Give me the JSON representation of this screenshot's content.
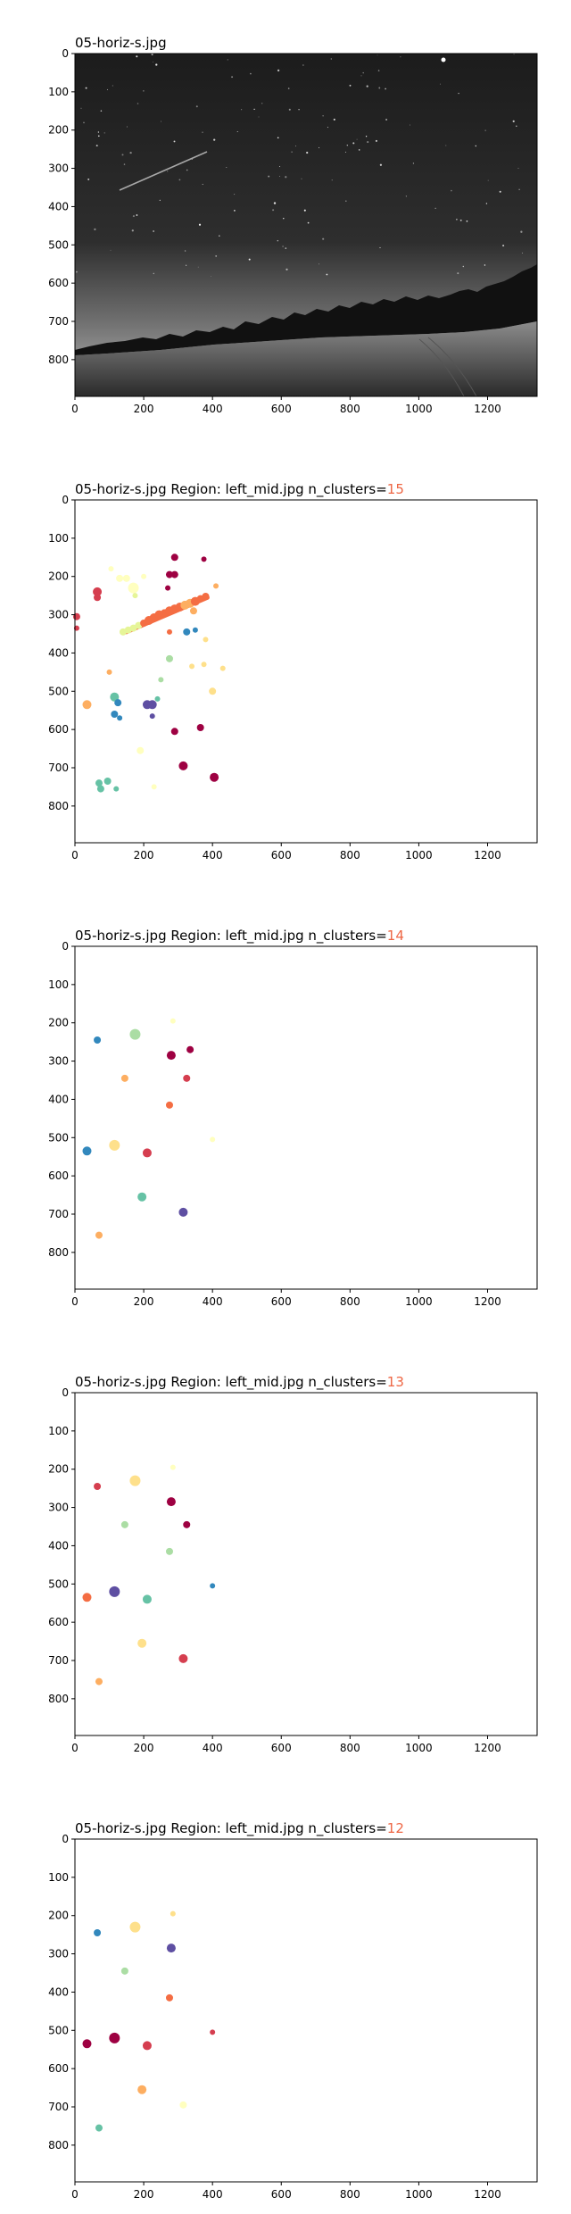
{
  "colors": {
    "spectral": [
      "#9e0142",
      "#d53e4f",
      "#f46d43",
      "#fdae61",
      "#fee08b",
      "#ffffbf",
      "#e6f598",
      "#abdda4",
      "#66c2a5",
      "#3288bd",
      "#5e4fa2"
    ],
    "accent": "#ee6644",
    "axis": "#000000"
  },
  "chart_data": [
    {
      "type": "image",
      "title": "05-horiz-s.jpg",
      "xlim": [
        0,
        1344
      ],
      "ylim": [
        896,
        0
      ],
      "xticks": [
        "0",
        "200",
        "400",
        "600",
        "800",
        "1000",
        "1200"
      ],
      "yticks": [
        "0",
        "100",
        "200",
        "300",
        "400",
        "500",
        "600",
        "700",
        "800"
      ],
      "image": "night-sky-photo"
    },
    {
      "type": "scatter",
      "title_prefix": "05-horiz-s.jpg Region: left_mid.jpg n_clusters=",
      "n_clusters": "15",
      "xlim": [
        0,
        1344
      ],
      "ylim": [
        896,
        0
      ],
      "xticks": [
        "0",
        "200",
        "400",
        "600",
        "800",
        "1000",
        "1200"
      ],
      "yticks": [
        "0",
        "100",
        "200",
        "300",
        "400",
        "500",
        "600",
        "700",
        "800"
      ],
      "points": [
        {
          "x": 5,
          "y": 305,
          "r": 4,
          "c": 1
        },
        {
          "x": 5,
          "y": 335,
          "r": 3,
          "c": 1
        },
        {
          "x": 65,
          "y": 240,
          "r": 5,
          "c": 1
        },
        {
          "x": 65,
          "y": 255,
          "r": 4,
          "c": 1
        },
        {
          "x": 105,
          "y": 180,
          "r": 3,
          "c": 5
        },
        {
          "x": 130,
          "y": 205,
          "r": 4,
          "c": 5
        },
        {
          "x": 150,
          "y": 205,
          "r": 4,
          "c": 5
        },
        {
          "x": 170,
          "y": 230,
          "r": 6,
          "c": 5
        },
        {
          "x": 175,
          "y": 250,
          "r": 3,
          "c": 6
        },
        {
          "x": 200,
          "y": 200,
          "r": 3,
          "c": 5
        },
        {
          "x": 290,
          "y": 150,
          "r": 4,
          "c": 0
        },
        {
          "x": 275,
          "y": 195,
          "r": 4,
          "c": 0
        },
        {
          "x": 290,
          "y": 195,
          "r": 4,
          "c": 0
        },
        {
          "x": 270,
          "y": 230,
          "r": 3,
          "c": 0
        },
        {
          "x": 375,
          "y": 155,
          "r": 3,
          "c": 0
        },
        {
          "x": 410,
          "y": 225,
          "r": 3,
          "c": 3
        },
        {
          "x": 140,
          "y": 345,
          "r": 4,
          "c": 6
        },
        {
          "x": 155,
          "y": 340,
          "r": 4,
          "c": 6
        },
        {
          "x": 170,
          "y": 335,
          "r": 4,
          "c": 6
        },
        {
          "x": 185,
          "y": 328,
          "r": 4,
          "c": 6
        },
        {
          "x": 200,
          "y": 322,
          "r": 4,
          "c": 2
        },
        {
          "x": 215,
          "y": 315,
          "r": 5,
          "c": 2
        },
        {
          "x": 230,
          "y": 308,
          "r": 5,
          "c": 2
        },
        {
          "x": 245,
          "y": 300,
          "r": 5,
          "c": 2
        },
        {
          "x": 260,
          "y": 295,
          "r": 4,
          "c": 2
        },
        {
          "x": 275,
          "y": 290,
          "r": 5,
          "c": 2
        },
        {
          "x": 290,
          "y": 285,
          "r": 5,
          "c": 2
        },
        {
          "x": 305,
          "y": 280,
          "r": 5,
          "c": 2
        },
        {
          "x": 320,
          "y": 275,
          "r": 5,
          "c": 3
        },
        {
          "x": 335,
          "y": 270,
          "r": 5,
          "c": 3
        },
        {
          "x": 350,
          "y": 265,
          "r": 5,
          "c": 2
        },
        {
          "x": 365,
          "y": 258,
          "r": 4,
          "c": 2
        },
        {
          "x": 380,
          "y": 252,
          "r": 4,
          "c": 2
        },
        {
          "x": 345,
          "y": 290,
          "r": 4,
          "c": 3
        },
        {
          "x": 325,
          "y": 345,
          "r": 4,
          "c": 9
        },
        {
          "x": 350,
          "y": 340,
          "r": 3,
          "c": 9
        },
        {
          "x": 275,
          "y": 345,
          "r": 3,
          "c": 2
        },
        {
          "x": 380,
          "y": 365,
          "r": 3,
          "c": 4
        },
        {
          "x": 275,
          "y": 415,
          "r": 4,
          "c": 7
        },
        {
          "x": 340,
          "y": 435,
          "r": 3,
          "c": 4
        },
        {
          "x": 375,
          "y": 430,
          "r": 3,
          "c": 4
        },
        {
          "x": 430,
          "y": 440,
          "r": 3,
          "c": 4
        },
        {
          "x": 100,
          "y": 450,
          "r": 3,
          "c": 3
        },
        {
          "x": 250,
          "y": 470,
          "r": 3,
          "c": 7
        },
        {
          "x": 35,
          "y": 535,
          "r": 5,
          "c": 3
        },
        {
          "x": 115,
          "y": 515,
          "r": 5,
          "c": 8
        },
        {
          "x": 125,
          "y": 530,
          "r": 4,
          "c": 9
        },
        {
          "x": 115,
          "y": 560,
          "r": 4,
          "c": 9
        },
        {
          "x": 130,
          "y": 570,
          "r": 3,
          "c": 9
        },
        {
          "x": 210,
          "y": 535,
          "r": 5,
          "c": 10
        },
        {
          "x": 225,
          "y": 535,
          "r": 5,
          "c": 10
        },
        {
          "x": 240,
          "y": 520,
          "r": 3,
          "c": 8
        },
        {
          "x": 225,
          "y": 565,
          "r": 3,
          "c": 10
        },
        {
          "x": 400,
          "y": 500,
          "r": 4,
          "c": 4
        },
        {
          "x": 365,
          "y": 595,
          "r": 4,
          "c": 0
        },
        {
          "x": 290,
          "y": 605,
          "r": 4,
          "c": 0
        },
        {
          "x": 190,
          "y": 655,
          "r": 4,
          "c": 5
        },
        {
          "x": 315,
          "y": 695,
          "r": 5,
          "c": 0
        },
        {
          "x": 405,
          "y": 725,
          "r": 5,
          "c": 0
        },
        {
          "x": 230,
          "y": 750,
          "r": 3,
          "c": 5
        },
        {
          "x": 70,
          "y": 740,
          "r": 4,
          "c": 8
        },
        {
          "x": 75,
          "y": 755,
          "r": 4,
          "c": 8
        },
        {
          "x": 95,
          "y": 735,
          "r": 4,
          "c": 8
        },
        {
          "x": 120,
          "y": 755,
          "r": 3,
          "c": 8
        }
      ],
      "streak": {
        "x1": 150,
        "y1": 345,
        "x2": 385,
        "y2": 255,
        "c": 2
      }
    },
    {
      "type": "scatter",
      "title_prefix": "05-horiz-s.jpg Region: left_mid.jpg n_clusters=",
      "n_clusters": "14",
      "xlim": [
        0,
        1344
      ],
      "ylim": [
        896,
        0
      ],
      "xticks": [
        "0",
        "200",
        "400",
        "600",
        "800",
        "1000",
        "1200"
      ],
      "yticks": [
        "0",
        "100",
        "200",
        "300",
        "400",
        "500",
        "600",
        "700",
        "800"
      ],
      "points": [
        {
          "x": 65,
          "y": 245,
          "r": 4,
          "c": 9
        },
        {
          "x": 175,
          "y": 230,
          "r": 6,
          "c": 7
        },
        {
          "x": 285,
          "y": 195,
          "r": 3,
          "c": 5
        },
        {
          "x": 280,
          "y": 285,
          "r": 5,
          "c": 0
        },
        {
          "x": 335,
          "y": 270,
          "r": 4,
          "c": 0
        },
        {
          "x": 145,
          "y": 345,
          "r": 4,
          "c": 3
        },
        {
          "x": 325,
          "y": 345,
          "r": 4,
          "c": 1
        },
        {
          "x": 275,
          "y": 415,
          "r": 4,
          "c": 2
        },
        {
          "x": 35,
          "y": 535,
          "r": 5,
          "c": 9
        },
        {
          "x": 115,
          "y": 520,
          "r": 6,
          "c": 4
        },
        {
          "x": 210,
          "y": 540,
          "r": 5,
          "c": 1
        },
        {
          "x": 400,
          "y": 505,
          "r": 3,
          "c": 5
        },
        {
          "x": 195,
          "y": 655,
          "r": 5,
          "c": 8
        },
        {
          "x": 315,
          "y": 695,
          "r": 5,
          "c": 10
        },
        {
          "x": 70,
          "y": 755,
          "r": 4,
          "c": 3
        }
      ]
    },
    {
      "type": "scatter",
      "title_prefix": "05-horiz-s.jpg Region: left_mid.jpg n_clusters=",
      "n_clusters": "13",
      "xlim": [
        0,
        1344
      ],
      "ylim": [
        896,
        0
      ],
      "xticks": [
        "0",
        "200",
        "400",
        "600",
        "800",
        "1000",
        "1200"
      ],
      "yticks": [
        "0",
        "100",
        "200",
        "300",
        "400",
        "500",
        "600",
        "700",
        "800"
      ],
      "points": [
        {
          "x": 65,
          "y": 245,
          "r": 4,
          "c": 1
        },
        {
          "x": 175,
          "y": 230,
          "r": 6,
          "c": 4
        },
        {
          "x": 285,
          "y": 195,
          "r": 3,
          "c": 5
        },
        {
          "x": 280,
          "y": 285,
          "r": 5,
          "c": 0
        },
        {
          "x": 325,
          "y": 345,
          "r": 4,
          "c": 0
        },
        {
          "x": 145,
          "y": 345,
          "r": 4,
          "c": 7
        },
        {
          "x": 275,
          "y": 415,
          "r": 4,
          "c": 7
        },
        {
          "x": 35,
          "y": 535,
          "r": 5,
          "c": 2
        },
        {
          "x": 115,
          "y": 520,
          "r": 6,
          "c": 10
        },
        {
          "x": 210,
          "y": 540,
          "r": 5,
          "c": 8
        },
        {
          "x": 400,
          "y": 505,
          "r": 3,
          "c": 9
        },
        {
          "x": 195,
          "y": 655,
          "r": 5,
          "c": 4
        },
        {
          "x": 315,
          "y": 695,
          "r": 5,
          "c": 1
        },
        {
          "x": 70,
          "y": 755,
          "r": 4,
          "c": 3
        }
      ]
    },
    {
      "type": "scatter",
      "title_prefix": "05-horiz-s.jpg Region: left_mid.jpg n_clusters=",
      "n_clusters": "12",
      "xlim": [
        0,
        1344
      ],
      "ylim": [
        896,
        0
      ],
      "xticks": [
        "0",
        "200",
        "400",
        "600",
        "800",
        "1000",
        "1200"
      ],
      "yticks": [
        "0",
        "100",
        "200",
        "300",
        "400",
        "500",
        "600",
        "700",
        "800"
      ],
      "points": [
        {
          "x": 65,
          "y": 245,
          "r": 4,
          "c": 9
        },
        {
          "x": 175,
          "y": 230,
          "r": 6,
          "c": 4
        },
        {
          "x": 285,
          "y": 195,
          "r": 3,
          "c": 4
        },
        {
          "x": 280,
          "y": 285,
          "r": 5,
          "c": 10
        },
        {
          "x": 145,
          "y": 345,
          "r": 4,
          "c": 7
        },
        {
          "x": 275,
          "y": 415,
          "r": 4,
          "c": 2
        },
        {
          "x": 35,
          "y": 535,
          "r": 5,
          "c": 0
        },
        {
          "x": 115,
          "y": 520,
          "r": 6,
          "c": 0
        },
        {
          "x": 210,
          "y": 540,
          "r": 5,
          "c": 1
        },
        {
          "x": 400,
          "y": 505,
          "r": 3,
          "c": 1
        },
        {
          "x": 195,
          "y": 655,
          "r": 5,
          "c": 3
        },
        {
          "x": 315,
          "y": 695,
          "r": 4,
          "c": 5
        },
        {
          "x": 70,
          "y": 755,
          "r": 4,
          "c": 8
        }
      ]
    }
  ]
}
